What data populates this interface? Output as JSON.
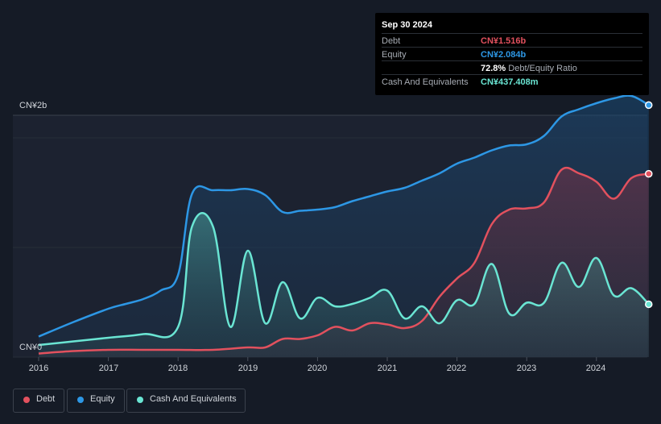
{
  "tooltip": {
    "date": "Sep 30 2024",
    "rows": [
      {
        "label": "Debt",
        "value": "CN¥1.516b",
        "color": "#e2515e"
      },
      {
        "label": "Equity",
        "value": "CN¥2.084b",
        "color": "#2d97e5"
      },
      {
        "label": "",
        "value": "72.8%",
        "sub": "Debt/Equity Ratio",
        "color": "#ffffff"
      },
      {
        "label": "Cash And Equivalents",
        "value": "CN¥437.408m",
        "color": "#6ae5d3"
      }
    ]
  },
  "legend": {
    "debt": "Debt",
    "equity": "Equity",
    "cash": "Cash And Equivalents"
  },
  "colors": {
    "debt": "#e2515e",
    "equity": "#2d97e5",
    "cash": "#6ae5d3",
    "background": "#151b26"
  },
  "chart_data": {
    "type": "area",
    "y_tick_labels": [
      "CN¥0",
      "CN¥2b"
    ],
    "x_tick_labels": [
      "2016",
      "2017",
      "2018",
      "2019",
      "2020",
      "2021",
      "2022",
      "2023",
      "2024"
    ],
    "ylim": [
      0,
      2.2
    ],
    "xlim": [
      2016.0,
      2024.75
    ],
    "grid": true,
    "legend_position": "bottom-left",
    "series": [
      {
        "name": "Equity",
        "key": "equity",
        "x": [
          2016.0,
          2016.5,
          2017.0,
          2017.25,
          2017.5,
          2017.75,
          2018.0,
          2018.2,
          2018.5,
          2018.75,
          2019.0,
          2019.25,
          2019.5,
          2019.75,
          2020.0,
          2020.25,
          2020.5,
          2020.75,
          2021.0,
          2021.25,
          2021.5,
          2021.75,
          2022.0,
          2022.25,
          2022.5,
          2022.75,
          2023.0,
          2023.25,
          2023.5,
          2023.75,
          2024.0,
          2024.25,
          2024.5,
          2024.75
        ],
        "values": [
          0.17,
          0.29,
          0.4,
          0.44,
          0.48,
          0.55,
          0.68,
          1.35,
          1.38,
          1.38,
          1.39,
          1.34,
          1.2,
          1.21,
          1.22,
          1.24,
          1.29,
          1.33,
          1.37,
          1.4,
          1.46,
          1.52,
          1.6,
          1.65,
          1.71,
          1.75,
          1.76,
          1.83,
          1.99,
          2.05,
          2.1,
          2.14,
          2.16,
          2.084
        ]
      },
      {
        "name": "Debt",
        "key": "debt",
        "x": [
          2016.0,
          2016.5,
          2017.0,
          2017.5,
          2018.0,
          2018.5,
          2019.0,
          2019.25,
          2019.5,
          2019.75,
          2020.0,
          2020.25,
          2020.5,
          2020.75,
          2021.0,
          2021.25,
          2021.5,
          2021.75,
          2022.0,
          2022.25,
          2022.5,
          2022.75,
          2023.0,
          2023.25,
          2023.5,
          2023.75,
          2024.0,
          2024.25,
          2024.5,
          2024.75
        ],
        "values": [
          0.03,
          0.05,
          0.06,
          0.06,
          0.06,
          0.06,
          0.08,
          0.08,
          0.15,
          0.15,
          0.18,
          0.25,
          0.22,
          0.28,
          0.27,
          0.24,
          0.3,
          0.5,
          0.65,
          0.78,
          1.1,
          1.22,
          1.23,
          1.28,
          1.55,
          1.52,
          1.45,
          1.31,
          1.48,
          1.516
        ]
      },
      {
        "name": "Cash And Equivalents",
        "key": "cash",
        "x": [
          2016.0,
          2016.5,
          2017.0,
          2017.5,
          2018.0,
          2018.2,
          2018.5,
          2018.75,
          2019.0,
          2019.25,
          2019.5,
          2019.75,
          2020.0,
          2020.25,
          2020.5,
          2020.75,
          2021.0,
          2021.25,
          2021.5,
          2021.75,
          2022.0,
          2022.25,
          2022.5,
          2022.75,
          2023.0,
          2023.25,
          2023.5,
          2023.75,
          2024.0,
          2024.25,
          2024.5,
          2024.75
        ],
        "values": [
          0.1,
          0.13,
          0.16,
          0.19,
          0.25,
          1.08,
          1.08,
          0.25,
          0.88,
          0.28,
          0.62,
          0.32,
          0.49,
          0.42,
          0.44,
          0.49,
          0.55,
          0.32,
          0.42,
          0.28,
          0.47,
          0.44,
          0.77,
          0.36,
          0.45,
          0.45,
          0.78,
          0.58,
          0.82,
          0.51,
          0.57,
          0.437
        ]
      }
    ]
  }
}
